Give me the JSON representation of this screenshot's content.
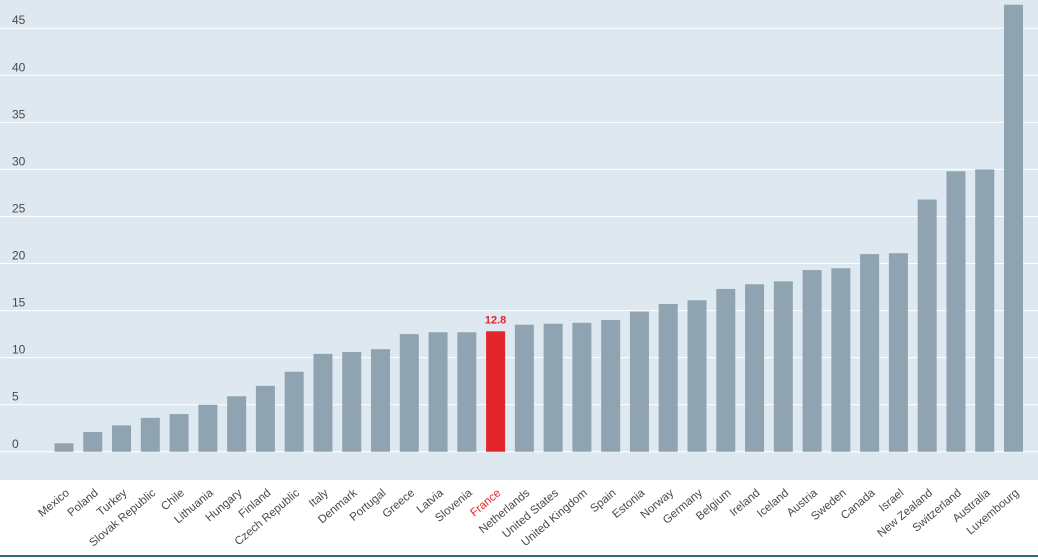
{
  "chart_data": {
    "type": "bar",
    "title": "",
    "xlabel": "",
    "ylabel": "",
    "ylim": [
      -3,
      48
    ],
    "yticks": [
      0,
      5,
      10,
      15,
      20,
      25,
      30,
      35,
      40,
      45
    ],
    "grid": true,
    "categories": [
      "Mexico",
      "Poland",
      "Turkey",
      "Slovak Republic",
      "Chile",
      "Lithuania",
      "Hungary",
      "Finland",
      "Czech Republic",
      "Italy",
      "Denmark",
      "Portugal",
      "Greece",
      "Latvia",
      "Slovenia",
      "France",
      "Netherlands",
      "United States",
      "United Kingdom",
      "Spain",
      "Estonia",
      "Norway",
      "Germany",
      "Belgium",
      "Ireland",
      "Iceland",
      "Austria",
      "Sweden",
      "Canada",
      "Israel",
      "New Zealand",
      "Switzerland",
      "Australia",
      "Luxembourg"
    ],
    "values": [
      0.9,
      2.1,
      2.8,
      3.6,
      4.0,
      5.0,
      5.9,
      7.0,
      8.5,
      10.4,
      10.6,
      10.9,
      12.5,
      12.7,
      12.7,
      12.8,
      13.5,
      13.6,
      13.7,
      14.0,
      14.9,
      15.7,
      16.1,
      17.3,
      17.8,
      18.1,
      19.3,
      19.5,
      21.0,
      21.1,
      26.8,
      29.8,
      30.0,
      47.5
    ],
    "highlight": {
      "category": "France",
      "label": "12.8"
    },
    "colors": {
      "bar": "#8fa3b0",
      "highlight": "#e3262b",
      "plot_background": "#dde8f0",
      "gridline": "#ffffff",
      "axis_line": "#2a6a80"
    }
  }
}
